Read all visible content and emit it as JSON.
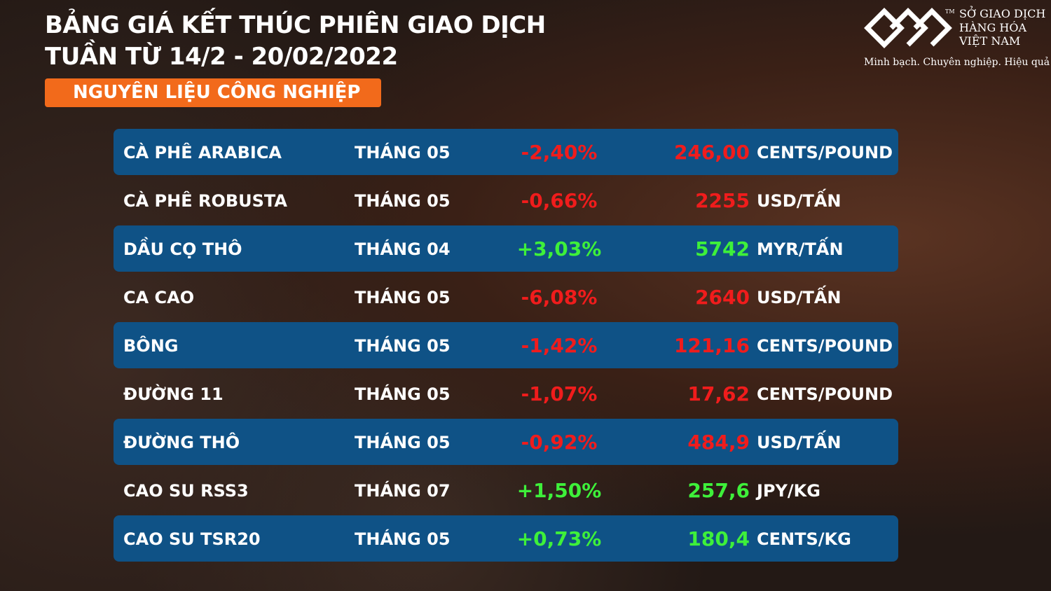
{
  "header": {
    "title_lines": [
      "BẢNG GIÁ KẾT THÚC PHIÊN GIAO DỊCH",
      "TUẦN TỪ 14/2 - 20/02/2022"
    ],
    "badge": "NGUYÊN LIỆU CÔNG NGHIỆP"
  },
  "logo": {
    "name_lines": [
      "SỞ GIAO DỊCH",
      "HÀNG HÓA",
      "VIỆT NAM"
    ],
    "tm": "TM",
    "slogan": "Minh bạch. Chuyên nghiệp. Hiệu quả"
  },
  "table": {
    "rows": [
      [
        "CÀ PHÊ ARABICA",
        "THÁNG 05",
        "-2,40%",
        "246,00",
        "CENTS/POUND"
      ],
      [
        "CÀ PHÊ ROBUSTA",
        "THÁNG 05",
        "-0,66%",
        "2255",
        "USD/TẤN"
      ],
      [
        "DẦU CỌ THÔ",
        "THÁNG 04",
        "+3,03%",
        "5742",
        "MYR/TẤN"
      ],
      [
        "CA CAO",
        "THÁNG 05",
        "-6,08%",
        "2640",
        "USD/TẤN"
      ],
      [
        "BÔNG",
        "THÁNG 05",
        "-1,42%",
        "121,16",
        "CENTS/POUND"
      ],
      [
        "ĐƯỜNG 11",
        "THÁNG 05",
        "-1,07%",
        "17,62",
        "CENTS/POUND"
      ],
      [
        "ĐƯỜNG THÔ",
        "THÁNG 05",
        "-0,92%",
        "484,9",
        "USD/TẤN"
      ],
      [
        "CAO SU RSS3",
        "THÁNG 07",
        "+1,50%",
        "257,6",
        "JPY/KG"
      ],
      [
        "CAO SU TSR20",
        "THÁNG 05",
        "+0,73%",
        "180,4",
        "CENTS/KG"
      ]
    ]
  }
}
